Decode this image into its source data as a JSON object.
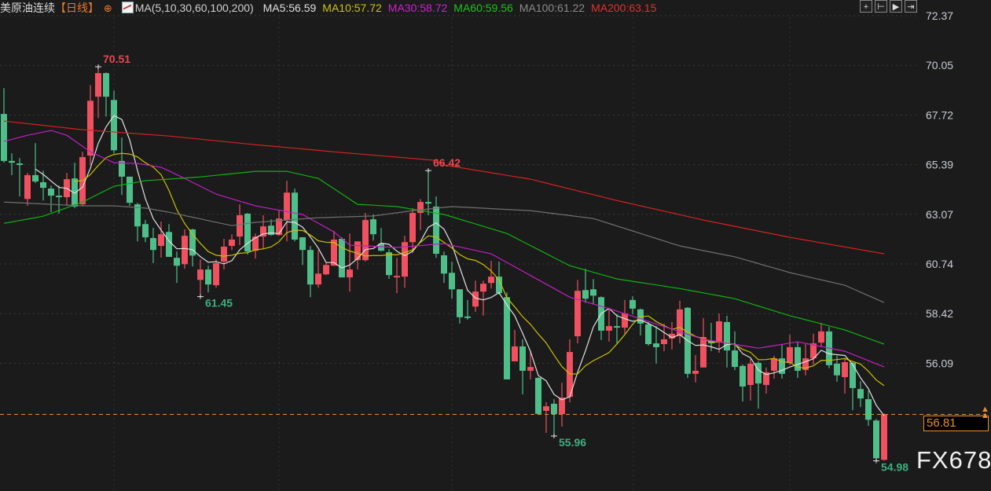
{
  "header": {
    "symbol": "美原油连续",
    "period": "【日线】",
    "ma_params": "MA(5,10,30,60,100,200)",
    "ma_values": [
      {
        "label": "MA5:56.59",
        "color": "#e0e0e0"
      },
      {
        "label": "MA10:57.72",
        "color": "#c8c414"
      },
      {
        "label": "MA30:58.72",
        "color": "#cc22cc"
      },
      {
        "label": "MA60:59.56",
        "color": "#1fc01f"
      },
      {
        "label": "MA100:61.22",
        "color": "#8a8a8a"
      },
      {
        "label": "MA200:63.15",
        "color": "#e03030"
      }
    ]
  },
  "toolbar": [
    {
      "name": "crosshair-icon",
      "glyph": "+"
    },
    {
      "name": "zoom-start-icon",
      "glyph": "⊢"
    },
    {
      "name": "play-icon",
      "glyph": "▶"
    },
    {
      "name": "goto-end-icon",
      "glyph": "⇥"
    }
  ],
  "last_price": "56.81",
  "watermark": "FX678",
  "colors": {
    "up": "#f0505f",
    "down": "#4fbf8a",
    "background": "#1b1b1b",
    "last_price": "#e8902a"
  },
  "chart_data": {
    "type": "candlestick",
    "title": "美原油连续【日线】",
    "y_ticks": [
      "72.37",
      "70.05",
      "67.72",
      "65.39",
      "63.07",
      "60.74",
      "58.42",
      "56.09"
    ],
    "y_axis_position": "right",
    "grid": true,
    "ohlc": [
      [
        68.65,
        69.67,
        66.73,
        66.8
      ],
      [
        66.8,
        67.1,
        66.24,
        66.73
      ],
      [
        66.7,
        66.91,
        65.4,
        66.64
      ],
      [
        65.3,
        66.33,
        65.03,
        66.24
      ],
      [
        66.24,
        67.5,
        65.93,
        65.99
      ],
      [
        65.96,
        66.42,
        65.24,
        65.74
      ],
      [
        65.71,
        65.83,
        64.78,
        65.43
      ],
      [
        65.43,
        65.83,
        64.72,
        65.37
      ],
      [
        65.37,
        66.33,
        65.03,
        66.08
      ],
      [
        66.11,
        66.73,
        64.94,
        65.0
      ],
      [
        65.09,
        67.16,
        65.03,
        66.95
      ],
      [
        67.01,
        69.79,
        66.64,
        69.17
      ],
      [
        69.33,
        70.51,
        68.49,
        70.26
      ],
      [
        70.26,
        70.29,
        68.55,
        69.33
      ],
      [
        69.2,
        69.57,
        67.1,
        67.22
      ],
      [
        66.8,
        67.72,
        65.46,
        66.18
      ],
      [
        66.18,
        66.18,
        65.03,
        65.15
      ],
      [
        65.09,
        65.15,
        63.63,
        64.22
      ],
      [
        64.31,
        64.47,
        63.6,
        63.79
      ],
      [
        63.76,
        64.16,
        62.77,
        63.29
      ],
      [
        63.45,
        64.41,
        62.99,
        63.91
      ],
      [
        64.0,
        64.31,
        63.02,
        63.02
      ],
      [
        62.98,
        63.23,
        61.99,
        62.67
      ],
      [
        62.73,
        64.1,
        62.55,
        63.85
      ],
      [
        64.1,
        64.13,
        62.64,
        63.07
      ],
      [
        62.11,
        62.92,
        61.45,
        62.52
      ],
      [
        62.52,
        62.67,
        61.62,
        61.93
      ],
      [
        61.9,
        62.92,
        61.8,
        62.77
      ],
      [
        62.83,
        63.73,
        62.52,
        63.42
      ],
      [
        63.45,
        63.91,
        63.29,
        63.7
      ],
      [
        63.82,
        65.09,
        63.48,
        64.66
      ],
      [
        64.72,
        64.75,
        63.11,
        63.23
      ],
      [
        63.26,
        63.94,
        62.95,
        63.82
      ],
      [
        63.82,
        64.66,
        63.32,
        64.22
      ],
      [
        64.25,
        64.5,
        63.85,
        63.88
      ],
      [
        63.88,
        64.84,
        63.85,
        64.53
      ],
      [
        64.47,
        66.02,
        63.63,
        65.55
      ],
      [
        65.55,
        65.71,
        63.63,
        63.7
      ],
      [
        63.79,
        63.79,
        62.7,
        63.29
      ],
      [
        63.29,
        63.45,
        61.43,
        61.93
      ],
      [
        61.93,
        63.29,
        61.8,
        62.36
      ],
      [
        62.33,
        62.77,
        62.3,
        62.7
      ],
      [
        62.67,
        64.04,
        62.67,
        63.7
      ],
      [
        63.73,
        63.79,
        62.21,
        62.21
      ],
      [
        62.21,
        63.94,
        61.65,
        62.52
      ],
      [
        62.89,
        63.63,
        62.52,
        63.63
      ],
      [
        62.89,
        64.75,
        62.83,
        64.47
      ],
      [
        64.5,
        64.69,
        63.66,
        63.91
      ],
      [
        63.54,
        64.16,
        63.23,
        63.26
      ],
      [
        63.2,
        63.32,
        62.15,
        62.3
      ],
      [
        62.21,
        62.98,
        61.59,
        62.27
      ],
      [
        62.24,
        63.85,
        61.8,
        63.6
      ],
      [
        63.6,
        64.94,
        63.17,
        64.75
      ],
      [
        64.75,
        65.3,
        64.07,
        65.18
      ],
      [
        65.18,
        66.42,
        64.66,
        65.12
      ],
      [
        65.0,
        65.4,
        62.98,
        63.14
      ],
      [
        63.08,
        63.23,
        61.99,
        62.36
      ],
      [
        62.39,
        62.83,
        61.37,
        61.74
      ],
      [
        61.74,
        61.74,
        60.39,
        60.64
      ],
      [
        60.67,
        61.32,
        60.54,
        60.61
      ],
      [
        61.06,
        62.08,
        60.85,
        61.65
      ],
      [
        61.65,
        62.08,
        60.7,
        61.96
      ],
      [
        61.99,
        62.86,
        61.77,
        62.24
      ],
      [
        62.24,
        62.83,
        61.53,
        61.59
      ],
      [
        61.43,
        61.62,
        58.19,
        58.19
      ],
      [
        58.9,
        60.14,
        58.9,
        59.49
      ],
      [
        59.49,
        59.77,
        57.6,
        58.53
      ],
      [
        58.53,
        59.3,
        58.19,
        58.68
      ],
      [
        58.25,
        58.28,
        56.79,
        56.83
      ],
      [
        56.95,
        57.29,
        56.08,
        57.13
      ],
      [
        57.23,
        57.41,
        55.96,
        56.82
      ],
      [
        56.82,
        58.06,
        56.33,
        57.47
      ],
      [
        57.5,
        59.77,
        57.29,
        59.27
      ],
      [
        59.89,
        62.11,
        59.61,
        61.68
      ],
      [
        61.71,
        62.55,
        61.21,
        61.37
      ],
      [
        61.74,
        62.14,
        61.15,
        61.49
      ],
      [
        61.43,
        61.46,
        59.74,
        60.11
      ],
      [
        60.11,
        61.01,
        59.68,
        60.29
      ],
      [
        60.29,
        60.76,
        59.61,
        60.23
      ],
      [
        60.23,
        61.32,
        59.99,
        60.79
      ],
      [
        61.32,
        61.46,
        60.76,
        60.98
      ],
      [
        60.95,
        60.98,
        59.92,
        60.39
      ],
      [
        60.36,
        60.45,
        59.52,
        59.58
      ],
      [
        59.61,
        60.29,
        58.81,
        59.46
      ],
      [
        59.58,
        60.39,
        59.3,
        59.77
      ],
      [
        59.8,
        60.45,
        59.37,
        59.99
      ],
      [
        59.92,
        61.29,
        59.61,
        60.95
      ],
      [
        61.01,
        61.04,
        58.25,
        58.41
      ],
      [
        58.41,
        59.15,
        58.07,
        58.53
      ],
      [
        58.66,
        60.61,
        58.66,
        59.86
      ],
      [
        59.71,
        60.42,
        59.3,
        59.61
      ],
      [
        59.68,
        60.79,
        59.24,
        60.48
      ],
      [
        60.45,
        60.7,
        58.66,
        59.33
      ],
      [
        59.33,
        60.08,
        58.56,
        58.68
      ],
      [
        58.72,
        58.78,
        57.32,
        57.91
      ],
      [
        57.97,
        58.99,
        57.35,
        58.81
      ],
      [
        58.84,
        58.9,
        57.04,
        58.03
      ],
      [
        57.97,
        58.66,
        57.63,
        58.47
      ],
      [
        58.53,
        59.12,
        58.22,
        59.02
      ],
      [
        59.02,
        59.58,
        58.22,
        58.41
      ],
      [
        58.84,
        59.95,
        58.75,
        59.46
      ],
      [
        59.46,
        59.64,
        58.25,
        58.53
      ],
      [
        58.56,
        59.58,
        58.35,
        59.02
      ],
      [
        59.02,
        59.99,
        58.78,
        59.61
      ],
      [
        59.64,
        60.42,
        59.46,
        60.08
      ],
      [
        60.08,
        60.26,
        58.63,
        58.75
      ],
      [
        58.81,
        59.12,
        58.1,
        58.35
      ],
      [
        58.28,
        58.99,
        57.63,
        58.87
      ],
      [
        58.84,
        58.9,
        56.98,
        57.85
      ],
      [
        57.81,
        58.12,
        57.1,
        57.44
      ],
      [
        57.41,
        57.75,
        56.36,
        56.6
      ],
      [
        56.57,
        56.63,
        54.98,
        55.08
      ],
      [
        55.02,
        56.85,
        54.98,
        56.81
      ]
    ],
    "ma_lines": [
      {
        "name": "MA5",
        "period": 5,
        "color": "#e0e0e0"
      },
      {
        "name": "MA10",
        "period": 10,
        "color": "#c8c000"
      },
      {
        "name": "MA30",
        "color": "#c020c0",
        "points": [
          [
            0,
            67.57
          ],
          [
            3,
            67.81
          ],
          [
            6,
            68.0
          ],
          [
            8,
            67.81
          ],
          [
            11,
            67.16
          ],
          [
            14,
            66.73
          ],
          [
            17,
            66.7
          ],
          [
            20,
            66.55
          ],
          [
            23,
            66.11
          ],
          [
            27,
            65.49
          ],
          [
            32,
            65.03
          ],
          [
            38,
            64.69
          ],
          [
            42,
            64.0
          ],
          [
            44,
            63.48
          ],
          [
            50,
            63.39
          ],
          [
            56,
            63.54
          ],
          [
            62,
            63.14
          ],
          [
            72,
            61.43
          ],
          [
            77,
            60.98
          ],
          [
            89,
            59.77
          ],
          [
            96,
            59.42
          ],
          [
            101,
            59.67
          ],
          [
            107,
            59.3
          ],
          [
            112,
            58.68
          ]
        ]
      },
      {
        "name": "MA60",
        "color": "#12b012",
        "points": [
          [
            0,
            64.34
          ],
          [
            5,
            64.62
          ],
          [
            10,
            65.18
          ],
          [
            14,
            65.8
          ],
          [
            18,
            66.02
          ],
          [
            25,
            66.17
          ],
          [
            32,
            66.39
          ],
          [
            36,
            66.39
          ],
          [
            40,
            66.11
          ],
          [
            45,
            65.09
          ],
          [
            50,
            65.0
          ],
          [
            56,
            64.69
          ],
          [
            64,
            63.94
          ],
          [
            72,
            62.67
          ],
          [
            78,
            62.15
          ],
          [
            86,
            61.77
          ],
          [
            93,
            61.37
          ],
          [
            100,
            60.7
          ],
          [
            107,
            60.14
          ],
          [
            112,
            59.58
          ]
        ]
      },
      {
        "name": "MA100",
        "color": "#707070",
        "points": [
          [
            0,
            65.18
          ],
          [
            10,
            65.03
          ],
          [
            14,
            65.03
          ],
          [
            18,
            64.94
          ],
          [
            21,
            64.78
          ],
          [
            29,
            64.25
          ],
          [
            32,
            64.38
          ],
          [
            40,
            64.56
          ],
          [
            47,
            64.63
          ],
          [
            52,
            64.84
          ],
          [
            57,
            65.0
          ],
          [
            67,
            64.84
          ],
          [
            75,
            64.53
          ],
          [
            86,
            63.45
          ],
          [
            93,
            63.02
          ],
          [
            100,
            62.4
          ],
          [
            107,
            61.9
          ],
          [
            112,
            61.22
          ]
        ]
      },
      {
        "name": "MA200",
        "color": "#d42222",
        "points": [
          [
            0,
            68.37
          ],
          [
            10,
            68.03
          ],
          [
            21,
            67.78
          ],
          [
            32,
            67.44
          ],
          [
            43,
            67.13
          ],
          [
            55,
            66.82
          ],
          [
            56,
            66.64
          ],
          [
            67,
            66.08
          ],
          [
            78,
            65.24
          ],
          [
            89,
            64.47
          ],
          [
            100,
            63.79
          ],
          [
            112,
            63.14
          ]
        ]
      }
    ],
    "annotations": [
      {
        "index": 12,
        "text": "70.51",
        "kind": "high"
      },
      {
        "index": 54,
        "text": "66.42",
        "kind": "high"
      },
      {
        "index": 25,
        "text": "61.45",
        "kind": "low"
      },
      {
        "index": 70,
        "text": "55.96",
        "kind": "low"
      },
      {
        "index": 111,
        "text": "54.98",
        "kind": "low"
      }
    ]
  }
}
